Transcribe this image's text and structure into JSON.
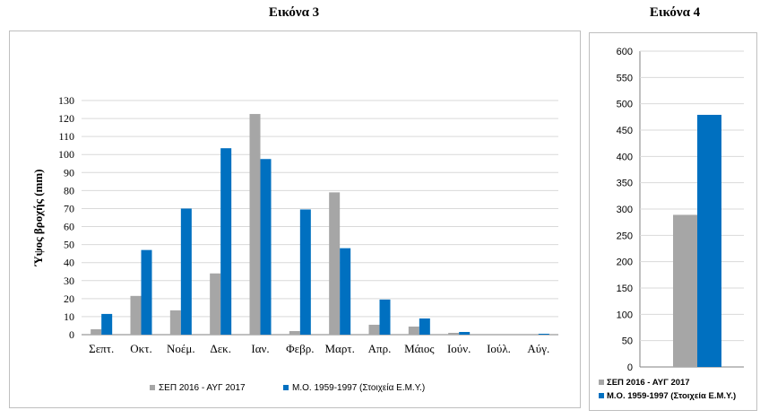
{
  "colors": {
    "series1": "#a6a6a6",
    "series2": "#0070c0",
    "grid": "#d9d9d9",
    "axis": "#808080"
  },
  "chart_data": [
    {
      "type": "bar",
      "title": "Εικόνα 3",
      "ylabel": "Ύψος βροχής (mm)",
      "xlabel": "",
      "ylim": [
        0,
        130
      ],
      "ytick_step": 10,
      "grid": true,
      "legend_placement": "bottom",
      "categories": [
        "Σεπτ.",
        "Οκτ.",
        "Νοέμ.",
        "Δεκ.",
        "Ιαν.",
        "Φεβρ.",
        "Μαρτ.",
        "Απρ.",
        "Μάιος",
        "Ιούν.",
        "Ιούλ.",
        "Αύγ."
      ],
      "series": [
        {
          "name": "ΣΕΠ 2016 - ΑΥΓ 2017",
          "values": [
            3,
            21.5,
            13.5,
            34,
            122.5,
            2,
            79,
            5.5,
            4.5,
            1,
            0,
            0
          ]
        },
        {
          "name": "Μ.Ο. 1959-1997  (Στοιχεία Ε.Μ.Υ.)",
          "values": [
            11.5,
            47,
            70,
            103.5,
            97.5,
            69.5,
            48,
            19.5,
            9,
            1.5,
            0,
            0.5
          ]
        }
      ]
    },
    {
      "type": "bar",
      "title": "Εικόνα 4",
      "ylabel": "",
      "xlabel": "",
      "ylim": [
        0,
        600
      ],
      "ytick_step": 50,
      "grid": true,
      "legend_placement": "bottom",
      "categories": [
        ""
      ],
      "series": [
        {
          "name": "ΣΕΠ 2016 - ΑΥΓ 2017",
          "values": [
            289
          ]
        },
        {
          "name": "Μ.Ο. 1959-1997  (Στοιχεία Ε.Μ.Υ.)",
          "values": [
            479
          ]
        }
      ]
    }
  ]
}
